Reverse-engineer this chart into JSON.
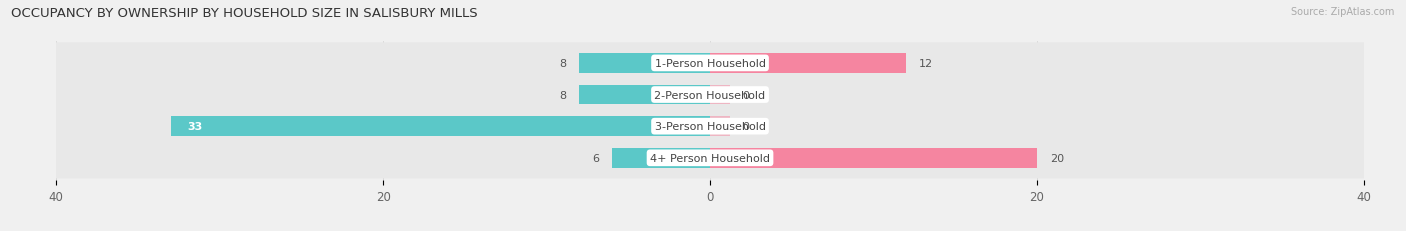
{
  "title": "OCCUPANCY BY OWNERSHIP BY HOUSEHOLD SIZE IN SALISBURY MILLS",
  "source": "Source: ZipAtlas.com",
  "categories": [
    "1-Person Household",
    "2-Person Household",
    "3-Person Household",
    "4+ Person Household"
  ],
  "owner_values": [
    8,
    8,
    33,
    6
  ],
  "renter_values": [
    12,
    0,
    0,
    20
  ],
  "owner_color": "#5BC8C8",
  "renter_color": "#F585A0",
  "axis_limit": 40,
  "bg_color": "#f0f0f0",
  "row_bg_color": "#e8e8e8",
  "bar_height": 0.62,
  "title_fontsize": 9.5,
  "label_fontsize": 8,
  "tick_fontsize": 8.5,
  "source_fontsize": 7
}
